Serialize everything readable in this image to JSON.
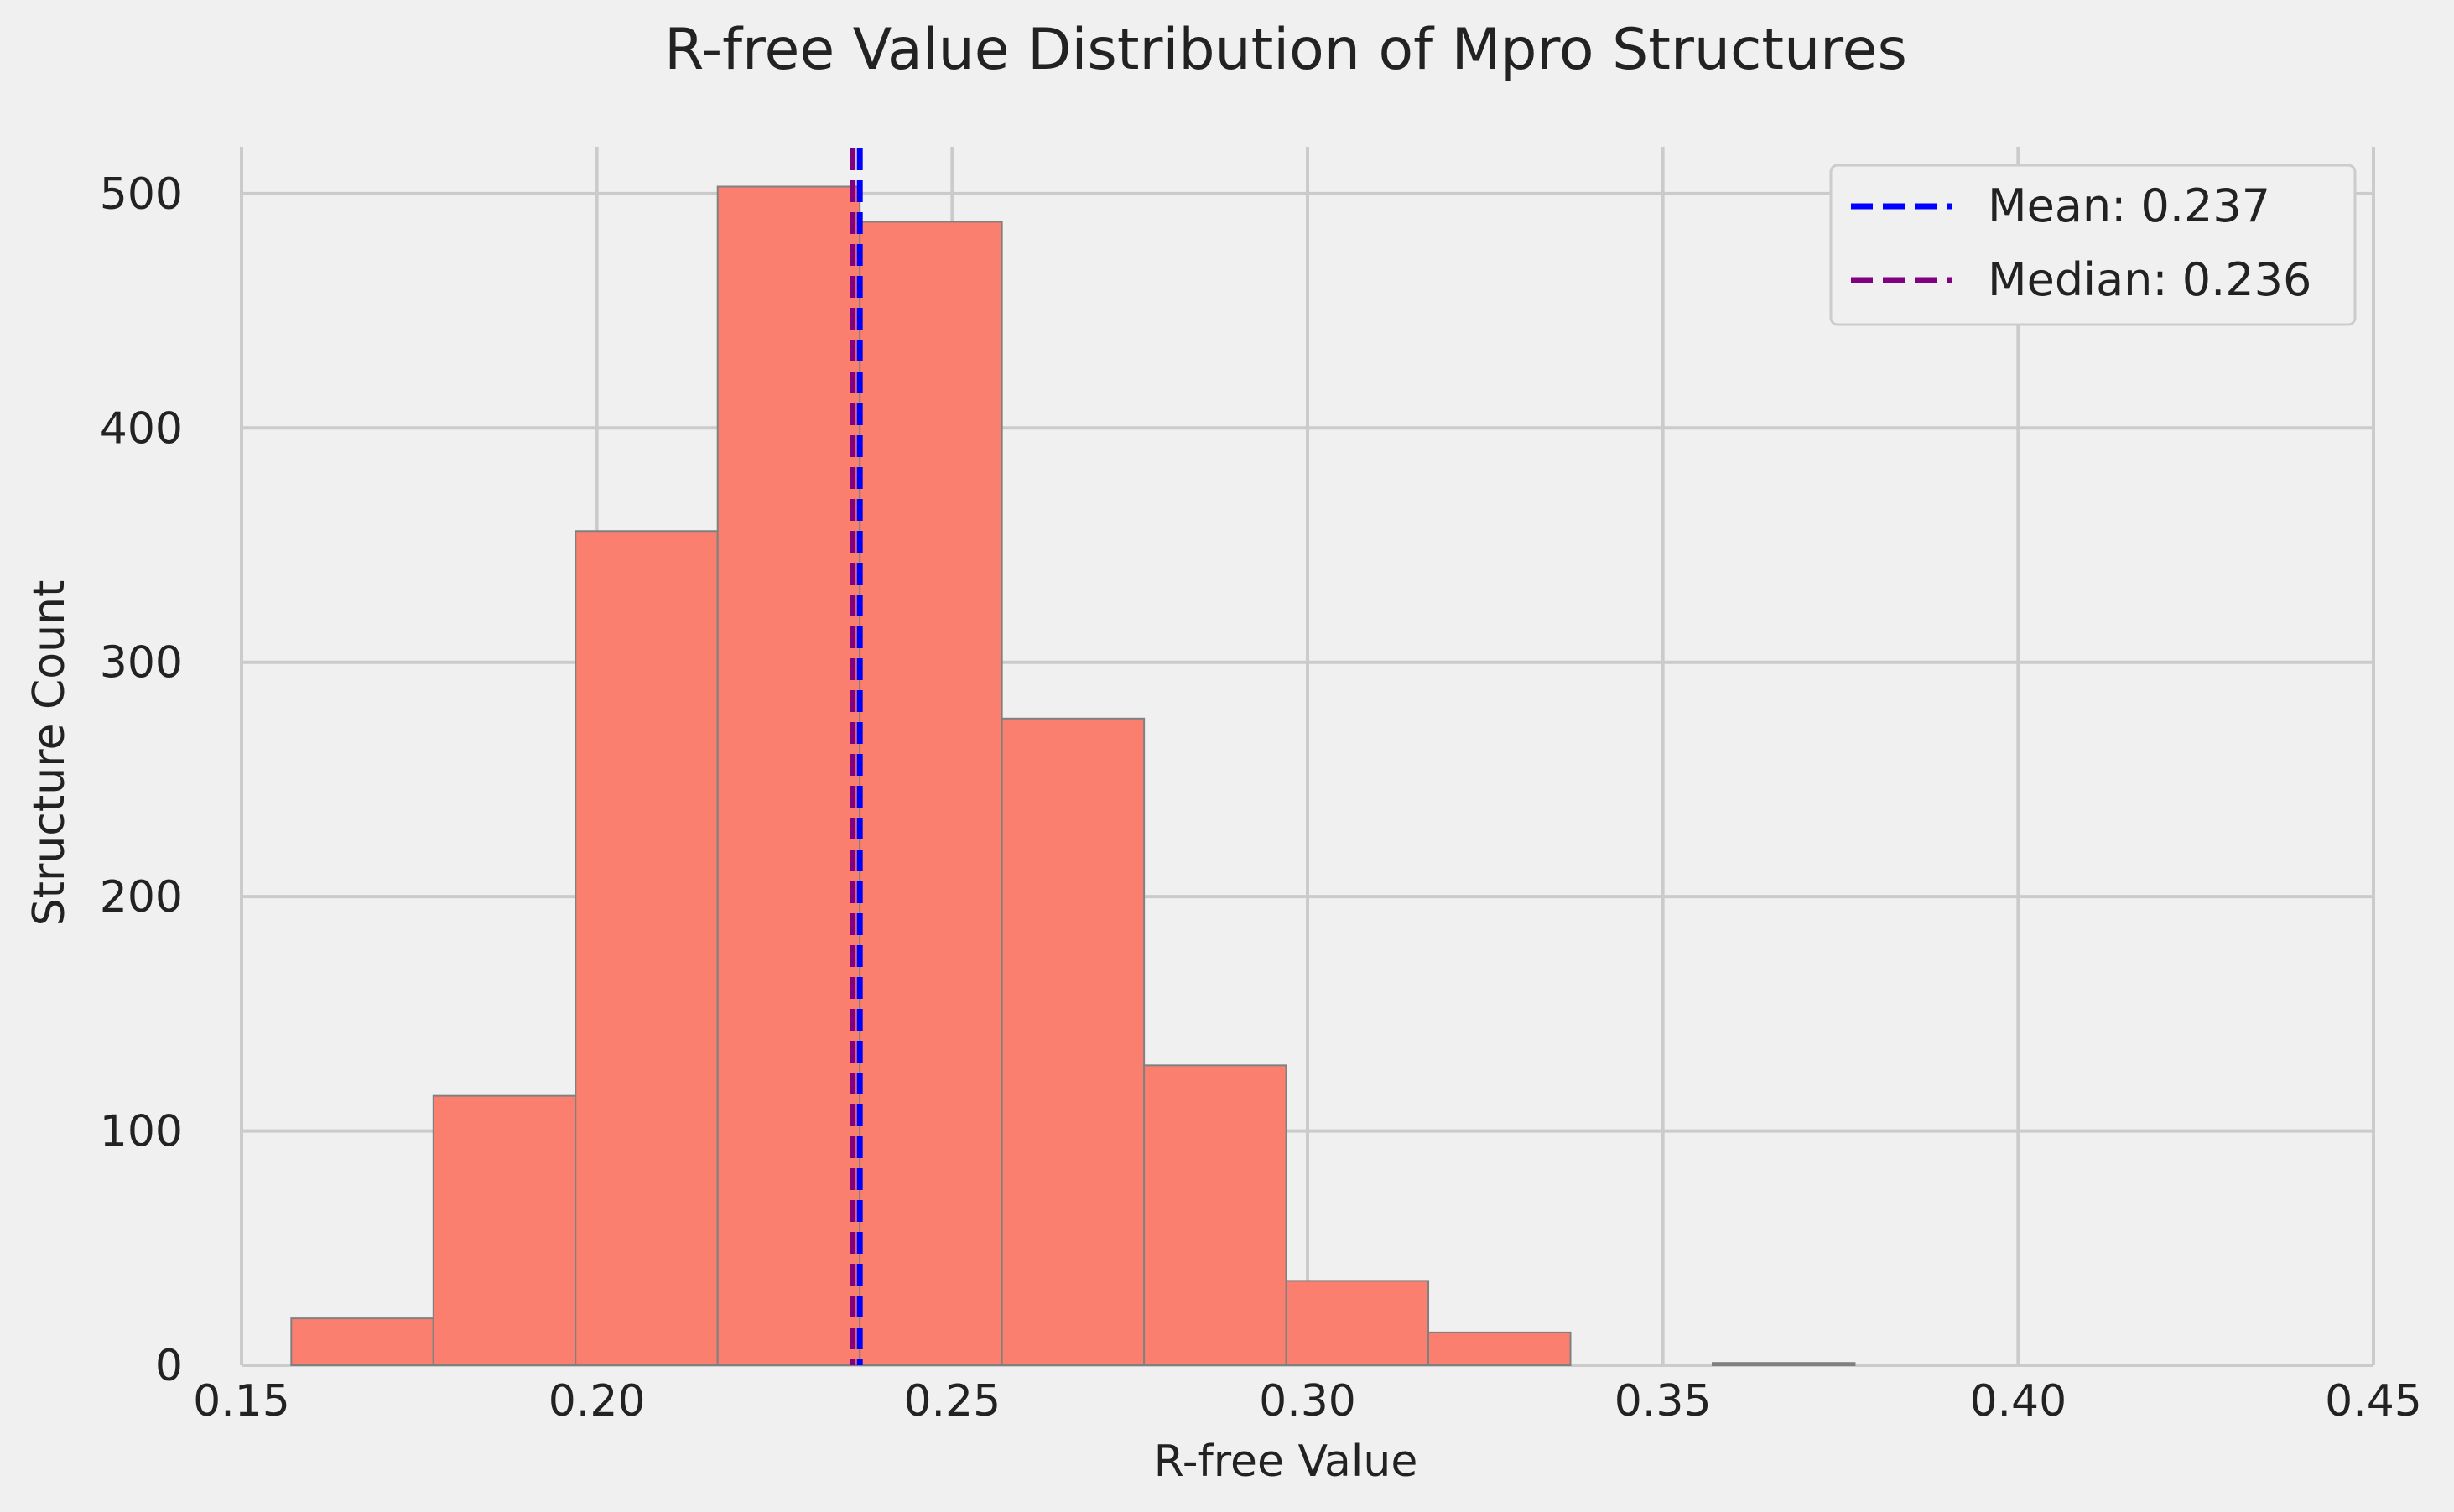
{
  "chart_data": {
    "type": "bar",
    "title": "R-free Value Distribution of Mpro Structures",
    "xlabel": "R-free Value",
    "ylabel": "Structure Count",
    "xlim": [
      0.15,
      0.45
    ],
    "ylim": [
      0,
      520
    ],
    "xticks": [
      0.15,
      0.2,
      0.25,
      0.3,
      0.35,
      0.4,
      0.45
    ],
    "xtick_labels": [
      "0.15",
      "0.20",
      "0.25",
      "0.30",
      "0.35",
      "0.40",
      "0.45"
    ],
    "yticks": [
      0,
      100,
      200,
      300,
      400,
      500
    ],
    "ytick_labels": [
      "0",
      "100",
      "200",
      "300",
      "400",
      "500"
    ],
    "grid": true,
    "bin_edges": [
      0.157,
      0.177,
      0.197,
      0.217,
      0.237,
      0.257,
      0.277,
      0.297,
      0.317,
      0.337,
      0.357,
      0.377
    ],
    "values": [
      20,
      115,
      356,
      503,
      488,
      276,
      128,
      36,
      14,
      0,
      1
    ],
    "bar_color": "#fa7f6f",
    "reference_lines": [
      {
        "label": "Mean: 0.237",
        "x": 0.237,
        "color": "#0000ff",
        "style": "dashed"
      },
      {
        "label": "Median: 0.236",
        "x": 0.236,
        "color": "#800080",
        "style": "dashed"
      }
    ],
    "legend_position": "top-right"
  }
}
